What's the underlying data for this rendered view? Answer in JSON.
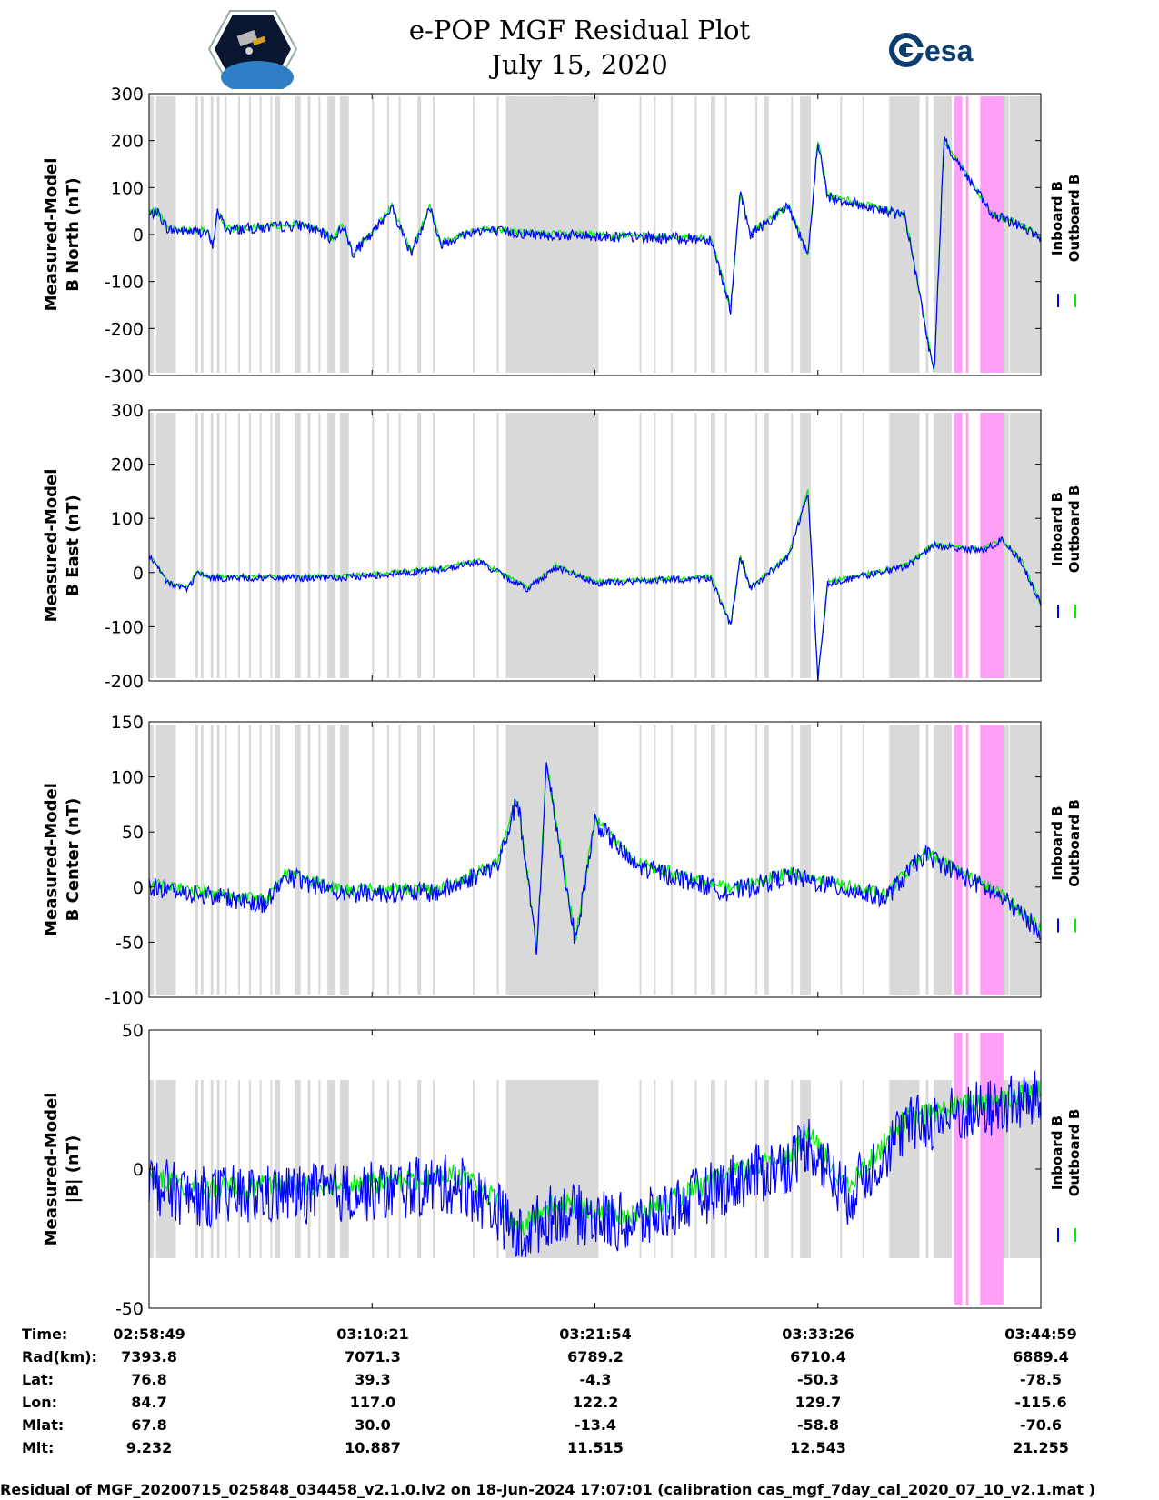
{
  "title": {
    "line1": "e-POP MGF Residual Plot",
    "line2": "July 15, 2020"
  },
  "logos": {
    "left": "cassiope-mission-logo",
    "right_text": "esa"
  },
  "colors": {
    "inboard": "#0000ff",
    "outboard": "#00ee00",
    "gray_band": "#d9d9d9",
    "pink_band": "#ff9ff6"
  },
  "chart_data": [
    {
      "type": "line",
      "ylabel": [
        "Measured-Model",
        "B North (nT)"
      ],
      "ylim": [
        -300,
        300
      ],
      "yticks": [
        300,
        200,
        100,
        0,
        -100,
        -200,
        -300
      ],
      "legend": [
        "Inboard B",
        "Outboard B"
      ],
      "series": [
        {
          "name": "Inboard B",
          "color": "#0000ff"
        },
        {
          "name": "Outboard B",
          "color": "#00ee00"
        }
      ],
      "features": [
        [
          0,
          40
        ],
        [
          0.04,
          50
        ],
        [
          0.1,
          10
        ],
        [
          0.3,
          5
        ],
        [
          0.33,
          -30
        ],
        [
          0.35,
          50
        ],
        [
          0.4,
          10
        ],
        [
          0.8,
          20
        ],
        [
          0.95,
          -10
        ],
        [
          1.0,
          20
        ],
        [
          1.05,
          -40
        ],
        [
          1.15,
          0
        ],
        [
          1.25,
          60
        ],
        [
          1.35,
          -40
        ],
        [
          1.45,
          60
        ],
        [
          1.5,
          -20
        ],
        [
          1.7,
          10
        ],
        [
          2.0,
          0
        ],
        [
          2.9,
          -10
        ],
        [
          3.0,
          -160
        ],
        [
          3.05,
          90
        ],
        [
          3.1,
          0
        ],
        [
          3.3,
          60
        ],
        [
          3.4,
          -50
        ],
        [
          3.45,
          200
        ],
        [
          3.5,
          80
        ],
        [
          3.9,
          40
        ],
        [
          4.05,
          -300
        ],
        [
          4.1,
          200
        ],
        [
          4.35,
          40
        ],
        [
          4.5,
          20
        ],
        [
          4.6,
          -10
        ]
      ],
      "noise": 18
    },
    {
      "type": "line",
      "ylabel": [
        "Measured-Model",
        "B East (nT)"
      ],
      "ylim": [
        -200,
        300
      ],
      "yticks": [
        300,
        200,
        100,
        0,
        -100,
        -200
      ],
      "legend": [
        "Inboard B",
        "Outboard B"
      ],
      "series": [
        {
          "name": "Inboard B",
          "color": "#0000ff"
        },
        {
          "name": "Outboard B",
          "color": "#00ee00"
        }
      ],
      "features": [
        [
          0,
          30
        ],
        [
          0.1,
          -20
        ],
        [
          0.2,
          -30
        ],
        [
          0.25,
          0
        ],
        [
          0.3,
          -10
        ],
        [
          1.0,
          -10
        ],
        [
          1.5,
          5
        ],
        [
          1.7,
          20
        ],
        [
          1.95,
          -30
        ],
        [
          2.1,
          10
        ],
        [
          2.3,
          -20
        ],
        [
          2.9,
          -10
        ],
        [
          3.0,
          -100
        ],
        [
          3.05,
          30
        ],
        [
          3.1,
          -30
        ],
        [
          3.3,
          30
        ],
        [
          3.4,
          150
        ],
        [
          3.45,
          -200
        ],
        [
          3.5,
          -20
        ],
        [
          3.9,
          10
        ],
        [
          4.05,
          50
        ],
        [
          4.3,
          40
        ],
        [
          4.4,
          60
        ],
        [
          4.5,
          20
        ],
        [
          4.6,
          -60
        ]
      ],
      "noise": 10
    },
    {
      "type": "line",
      "ylabel": [
        "Measured-Model",
        "B Center (nT)"
      ],
      "ylim": [
        -100,
        150
      ],
      "yticks": [
        150,
        100,
        50,
        0,
        -50,
        -100
      ],
      "legend": [
        "Inboard B",
        "Outboard B"
      ],
      "series": [
        {
          "name": "Inboard B",
          "color": "#0000ff"
        },
        {
          "name": "Outboard B",
          "color": "#00ee00"
        }
      ],
      "features": [
        [
          0,
          0
        ],
        [
          0.6,
          -15
        ],
        [
          0.7,
          10
        ],
        [
          1.0,
          -5
        ],
        [
          1.5,
          -5
        ],
        [
          1.8,
          20
        ],
        [
          1.9,
          80
        ],
        [
          2.0,
          -60
        ],
        [
          2.05,
          110
        ],
        [
          2.2,
          -50
        ],
        [
          2.3,
          60
        ],
        [
          2.5,
          20
        ],
        [
          3.0,
          -5
        ],
        [
          3.3,
          10
        ],
        [
          3.8,
          -10
        ],
        [
          4.0,
          30
        ],
        [
          4.4,
          -10
        ],
        [
          4.6,
          -40
        ]
      ],
      "noise": 14
    },
    {
      "type": "line",
      "ylabel": [
        "Measured-Model",
        "|B| (nT)"
      ],
      "ylim": [
        -50,
        50
      ],
      "yticks": [
        50,
        0,
        -50
      ],
      "legend": [
        "Inboard B",
        "Outboard B"
      ],
      "series": [
        {
          "name": "Inboard B",
          "color": "#0000ff"
        },
        {
          "name": "Outboard B",
          "color": "#00ee00"
        }
      ],
      "features": [
        [
          0,
          -5
        ],
        [
          0.2,
          -10
        ],
        [
          1.2,
          -8
        ],
        [
          1.6,
          -5
        ],
        [
          1.8,
          -15
        ],
        [
          1.9,
          -25
        ],
        [
          2.1,
          -15
        ],
        [
          2.5,
          -20
        ],
        [
          3.0,
          -5
        ],
        [
          3.3,
          2
        ],
        [
          3.4,
          10
        ],
        [
          3.6,
          -10
        ],
        [
          3.9,
          15
        ],
        [
          4.2,
          20
        ],
        [
          4.6,
          25
        ]
      ],
      "noise": 10
    }
  ],
  "x_axis": {
    "labels_title": [
      "Time:",
      "Rad(km):",
      "Lat:",
      "Lon:",
      "Mlat:",
      "Mlt:"
    ],
    "columns": [
      [
        "02:58:49",
        "7393.8",
        "76.8",
        "84.7",
        "67.8",
        "9.232"
      ],
      [
        "03:10:21",
        "7071.3",
        "39.3",
        "117.0",
        "30.0",
        "10.887"
      ],
      [
        "03:21:54",
        "6789.2",
        "-4.3",
        "122.2",
        "-13.4",
        "11.515"
      ],
      [
        "03:33:26",
        "6710.4",
        "-50.3",
        "129.7",
        "-58.8",
        "12.543"
      ],
      [
        "03:44:59",
        "6889.4",
        "-78.5",
        "-115.6",
        "-70.6",
        "21.255"
      ]
    ]
  },
  "footer": "Residual of MGF_20200715_025848_034458_v2.1.0.lv2 on 18-Jun-2024 17:07:01 (calibration cas_mgf_7day_cal_2020_07_10_v2.1.mat )"
}
